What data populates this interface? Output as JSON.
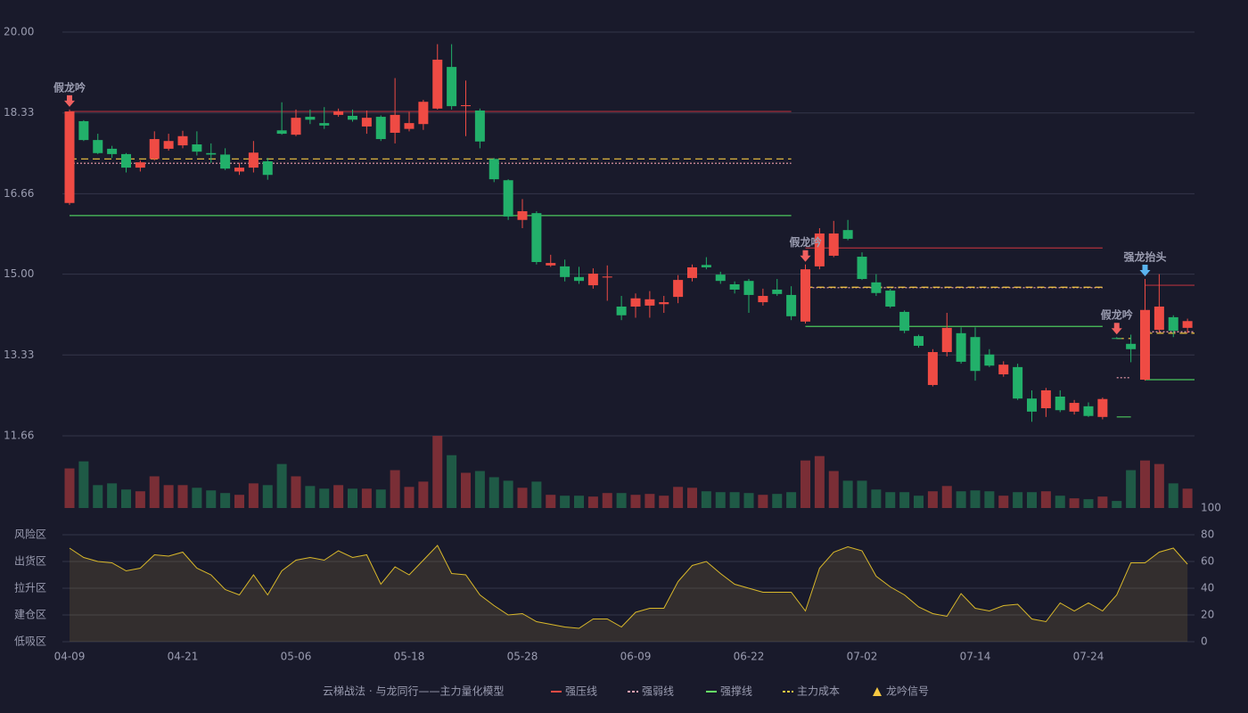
{
  "chart_data": {
    "type": "candlestick",
    "categories": [
      "04-09",
      null,
      null,
      null,
      null,
      null,
      null,
      null,
      "04-21",
      null,
      null,
      null,
      null,
      null,
      null,
      null,
      "05-06",
      null,
      null,
      null,
      null,
      null,
      null,
      null,
      "05-18",
      null,
      null,
      null,
      null,
      null,
      null,
      null,
      "05-28",
      null,
      null,
      null,
      null,
      null,
      null,
      null,
      "06-09",
      null,
      null,
      null,
      null,
      null,
      null,
      null,
      "06-22",
      null,
      null,
      null,
      null,
      null,
      null,
      null,
      "07-02",
      null,
      null,
      null,
      null,
      null,
      null,
      null,
      "07-14",
      null,
      null,
      null,
      null,
      null,
      null,
      null,
      "07-24",
      null,
      null,
      null,
      null,
      null,
      null,
      null
    ],
    "open": [
      16.47,
      18.16,
      17.77,
      17.59,
      17.48,
      17.2,
      17.38,
      17.59,
      17.66,
      17.68,
      17.5,
      17.47,
      17.12,
      17.2,
      17.33,
      17.97,
      17.88,
      18.25,
      18.12,
      18.29,
      18.27,
      18.05,
      18.25,
      17.92,
      18.0,
      18.1,
      18.42,
      19.28,
      18.47,
      18.38,
      17.38,
      16.94,
      16.12,
      16.26,
      15.18,
      15.16,
      14.94,
      14.77,
      14.93,
      14.33,
      14.33,
      14.35,
      14.38,
      14.53,
      14.92,
      15.19,
      14.99,
      14.79,
      14.86,
      14.42,
      14.68,
      14.57,
      14.02,
      15.16,
      15.38,
      15.91,
      15.36,
      14.83,
      14.66,
      14.22,
      13.72,
      12.71,
      13.39,
      13.78,
      13.7,
      13.34,
      12.93,
      13.08,
      12.43,
      12.23,
      12.47,
      12.16,
      12.27,
      12.05,
      13.68,
      13.56,
      12.82,
      13.85,
      14.11,
      13.89
    ],
    "high": [
      18.4,
      18.18,
      17.9,
      17.65,
      17.5,
      17.35,
      17.95,
      17.9,
      17.96,
      17.95,
      17.7,
      17.6,
      17.3,
      17.75,
      17.4,
      18.55,
      18.4,
      18.4,
      18.45,
      18.42,
      18.4,
      18.38,
      18.28,
      19.05,
      18.35,
      18.6,
      19.75,
      19.75,
      19.0,
      18.42,
      17.4,
      16.96,
      16.55,
      16.3,
      15.4,
      15.3,
      15.15,
      15.12,
      15.18,
      14.55,
      14.6,
      14.65,
      14.55,
      14.98,
      15.2,
      15.35,
      15.05,
      14.85,
      14.9,
      14.7,
      14.9,
      14.75,
      15.2,
      15.95,
      16.1,
      16.12,
      15.45,
      15.0,
      14.7,
      14.25,
      13.75,
      13.45,
      14.2,
      13.9,
      13.9,
      13.45,
      13.2,
      13.15,
      12.6,
      12.65,
      12.6,
      12.4,
      12.35,
      12.45,
      13.7,
      13.75,
      14.9,
      15.0,
      14.15,
      14.08
    ],
    "low": [
      16.43,
      17.75,
      17.48,
      17.4,
      17.1,
      17.12,
      17.35,
      17.55,
      17.6,
      17.45,
      17.3,
      17.15,
      17.05,
      17.1,
      16.95,
      17.88,
      17.85,
      18.1,
      18.0,
      18.25,
      18.15,
      17.9,
      17.75,
      17.7,
      17.95,
      17.98,
      18.4,
      18.4,
      17.85,
      17.6,
      16.9,
      16.12,
      15.95,
      15.2,
      15.15,
      14.85,
      14.8,
      14.7,
      14.45,
      14.05,
      14.1,
      14.1,
      14.2,
      14.4,
      14.85,
      15.1,
      14.8,
      14.6,
      14.2,
      14.35,
      14.55,
      14.05,
      13.98,
      15.1,
      15.35,
      15.7,
      14.88,
      14.55,
      14.3,
      13.78,
      13.48,
      12.68,
      13.3,
      13.15,
      12.8,
      13.08,
      12.88,
      12.4,
      11.95,
      12.05,
      12.15,
      12.1,
      12.05,
      12.0,
      13.66,
      13.18,
      12.8,
      13.8,
      13.7,
      13.78
    ],
    "close": [
      18.36,
      17.77,
      17.5,
      17.48,
      17.2,
      17.31,
      17.79,
      17.75,
      17.85,
      17.53,
      17.47,
      17.18,
      17.2,
      17.51,
      17.05,
      17.9,
      18.23,
      18.19,
      18.07,
      18.36,
      18.19,
      18.23,
      17.79,
      18.29,
      18.12,
      18.56,
      19.43,
      18.47,
      18.49,
      17.74,
      16.96,
      16.19,
      16.3,
      15.25,
      15.23,
      14.94,
      14.86,
      15.01,
      14.95,
      14.15,
      14.5,
      14.48,
      14.42,
      14.88,
      15.14,
      15.14,
      14.86,
      14.68,
      14.57,
      14.55,
      14.59,
      14.13,
      15.1,
      15.84,
      15.84,
      15.73,
      14.9,
      14.61,
      14.33,
      13.83,
      13.52,
      13.39,
      13.89,
      13.19,
      13.0,
      13.11,
      13.13,
      12.43,
      12.16,
      12.6,
      12.19,
      12.34,
      12.07,
      12.42,
      13.67,
      13.45,
      14.26,
      14.33,
      13.83,
      14.03
    ],
    "colors": {
      "up": "#ef4b44",
      "down": "#22b06a",
      "volume_up": "#7a2e36",
      "volume_down": "#1f5a46"
    },
    "ylim": [
      11.66,
      20
    ],
    "yticks": [
      11.66,
      13.33,
      {
        "value": 15,
        "label": "15.00"
      },
      16.66,
      18.33,
      {
        "value": 20,
        "label": "20.00"
      }
    ],
    "grid": true,
    "volume": {
      "values": [
        45,
        53,
        26,
        28,
        21,
        19,
        36,
        26,
        26,
        23,
        20,
        17,
        15,
        28,
        26,
        50,
        36,
        25,
        22,
        26,
        22,
        22,
        21,
        43,
        24,
        30,
        82,
        60,
        40,
        42,
        35,
        31,
        23,
        30,
        15,
        14,
        14,
        13,
        17,
        17,
        15,
        16,
        14,
        24,
        23,
        19,
        18,
        18,
        17,
        15,
        16,
        18,
        54,
        59,
        42,
        31,
        31,
        21,
        18,
        18,
        14,
        19,
        25,
        19,
        20,
        19,
        14,
        18,
        18,
        19,
        14,
        11,
        10,
        13,
        8,
        43,
        54,
        50,
        28,
        22
      ]
    },
    "indicator": {
      "color": "#d9b82a",
      "values": [
        70,
        63,
        60,
        59,
        53,
        55,
        65,
        64,
        67,
        55,
        50,
        39,
        35,
        50,
        35,
        53,
        61,
        63,
        61,
        68,
        63,
        65,
        43,
        56,
        50,
        61,
        72,
        51,
        50,
        35,
        27,
        20,
        21,
        15,
        13,
        11,
        10,
        17,
        17,
        11,
        22,
        25,
        25,
        45,
        57,
        60,
        51,
        43,
        40,
        37,
        37,
        37,
        23,
        55,
        67,
        71,
        68,
        49,
        41,
        35,
        26,
        21,
        19,
        36,
        25,
        23,
        27,
        28,
        17,
        15,
        29,
        23,
        29,
        23,
        35,
        59,
        59,
        67,
        70,
        58
      ],
      "ylim": [
        0,
        100
      ],
      "yticks": [
        0,
        20,
        40,
        60,
        80,
        100
      ],
      "tick_colors": [
        "#ef4b44",
        "#f07a3a",
        "#4a9df0",
        "#e040e0",
        "#f0a030",
        "#44dd44"
      ],
      "zones": [
        {
          "value": 0,
          "label": "低吸区",
          "color": "#ef4b44"
        },
        {
          "value": 20,
          "label": "建仓区",
          "color": "#f0553a"
        },
        {
          "value": 40,
          "label": "拉升区",
          "color": "#4a9df0"
        },
        {
          "value": 60,
          "label": "出货区",
          "color": "#e040e0"
        },
        {
          "value": 80,
          "label": "风险区",
          "color": "#f0a030"
        }
      ]
    },
    "levels": [
      {
        "start": 0,
        "end": 51,
        "pressure": 18.36,
        "weak": 17.29,
        "cost": 17.38,
        "support": 16.21
      },
      {
        "start": 52,
        "end": 73,
        "pressure": 15.54,
        "weak": 14.72,
        "cost": 14.73,
        "support": 13.92
      },
      {
        "start": 74,
        "end": 75,
        "pressure": null,
        "weak": 12.86,
        "cost": 13.67,
        "support": 12.05
      },
      {
        "start": 76,
        "end": 79,
        "pressure": 14.77,
        "weak": 13.81,
        "cost": 13.78,
        "support": 12.82
      }
    ],
    "level_styles": {
      "pressure": {
        "color": "#b0323c",
        "dash": "none"
      },
      "weak": {
        "color": "#f0a0b0",
        "dash": "2 2"
      },
      "cost": {
        "color": "#f5c842",
        "dash": "8 5"
      },
      "support": {
        "color": "#4cc85c",
        "dash": "none"
      }
    },
    "signals": [
      {
        "index": 0,
        "label": "假龙吟",
        "color": "#f06060"
      },
      {
        "index": 52,
        "label": "假龙吟",
        "color": "#f06060"
      },
      {
        "index": 74,
        "label": "假龙吟",
        "color": "#f06060"
      },
      {
        "index": 76,
        "label": "强龙抬头",
        "color": "#5ab4f0"
      }
    ],
    "legend": {
      "title": "云梯战法 · 与龙同行——主力量化模型",
      "title_color": "#e8c070",
      "items": [
        {
          "name": "强压线",
          "color": "#ef4b44",
          "style": "solid"
        },
        {
          "name": "强弱线",
          "color": "#f0a0b0",
          "style": "dashed"
        },
        {
          "name": "强撑线",
          "color": "#66ee66",
          "style": "solid"
        },
        {
          "name": "主力成本",
          "color": "#f5c842",
          "style": "dashed"
        },
        {
          "name": "龙吟信号",
          "color": "#f5c842",
          "style": "triangle"
        }
      ]
    }
  }
}
